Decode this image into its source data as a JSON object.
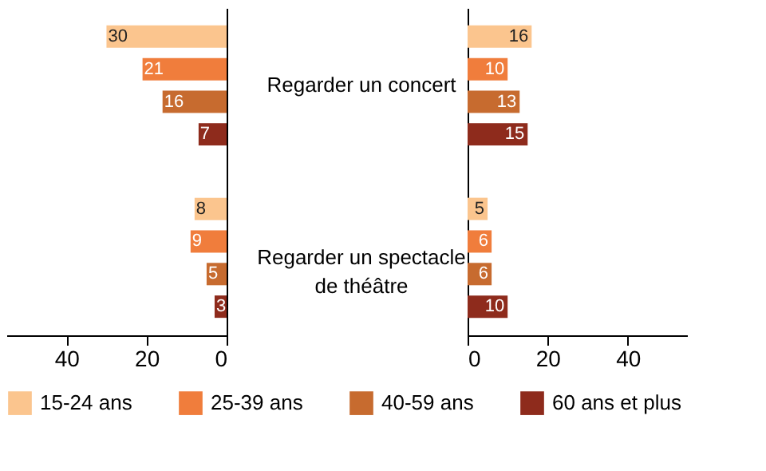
{
  "chart_data": [
    {
      "type": "bar",
      "orientation": "horizontal",
      "categories": [
        "Regarder un concert",
        "Regarder un spectacle\nde théâtre"
      ],
      "xlim": [
        55,
        0
      ],
      "xticks": [
        40,
        20,
        0
      ],
      "data_labels": true,
      "legend": "bottom",
      "grid": false,
      "series": [
        {
          "name": "15-24 ans",
          "color": "#fbc58e",
          "values": [
            30,
            8
          ]
        },
        {
          "name": "25-39 ans",
          "color": "#f07d3c",
          "values": [
            21,
            9
          ]
        },
        {
          "name": "40-59 ans",
          "color": "#c76b2f",
          "values": [
            16,
            5
          ]
        },
        {
          "name": "60 ans et plus",
          "color": "#8e2b1c",
          "values": [
            7,
            3
          ]
        }
      ]
    },
    {
      "type": "bar",
      "orientation": "horizontal",
      "categories": [
        null,
        null
      ],
      "xlim": [
        0,
        55
      ],
      "xticks": [
        0,
        20,
        40
      ],
      "tick_labels": "x",
      "data_labels": true,
      "grid": false,
      "series": [
        {
          "name": "15-24 ans",
          "color": "#fbc58e",
          "values": [
            16,
            5
          ]
        },
        {
          "name": "25-39 ans",
          "color": "#f07d3c",
          "values": [
            10,
            6
          ]
        },
        {
          "name": "40-59 ans",
          "color": "#c76b2f",
          "values": [
            13,
            6
          ]
        },
        {
          "name": "60 ans et plus",
          "color": "#8e2b1c",
          "values": [
            15,
            10
          ]
        }
      ]
    }
  ]
}
